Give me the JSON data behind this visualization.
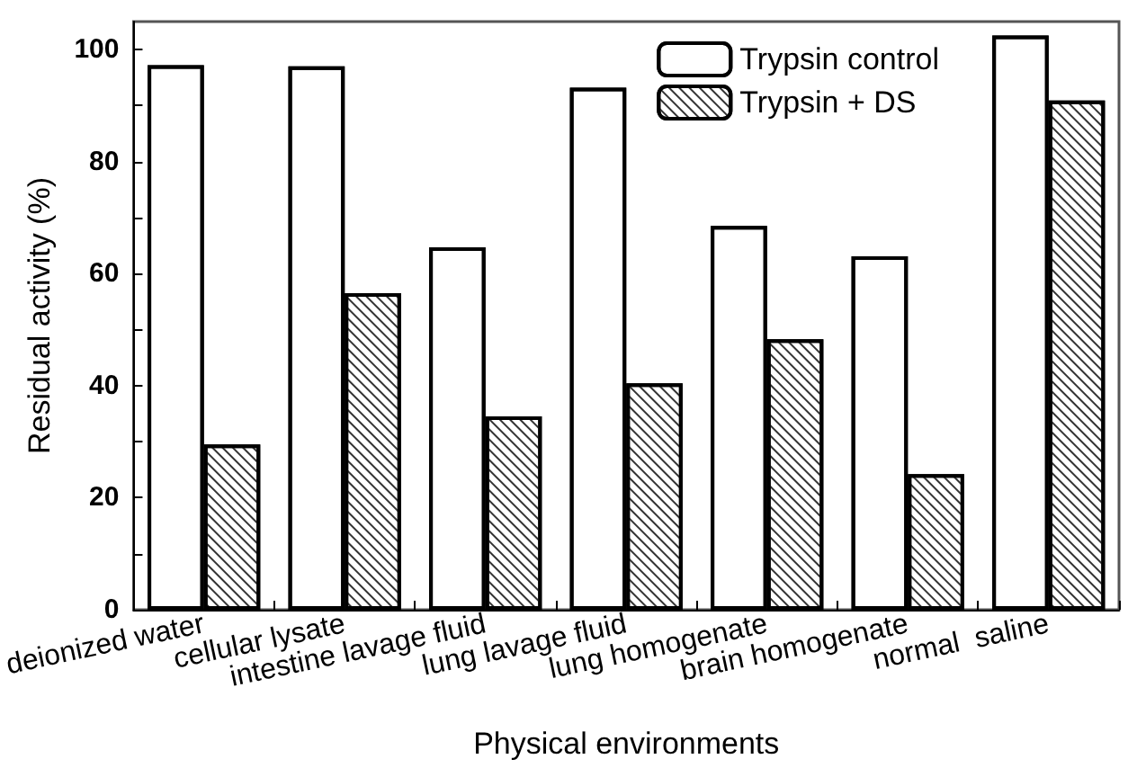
{
  "chart_data": {
    "type": "bar",
    "xlabel": "Physical environments",
    "ylabel": "Residual activity (%)",
    "categories": [
      "deionized water",
      "cellular lysate",
      "intestine lavage fluid",
      "lung lavage fluid",
      "lung homogenate",
      "brain homogenate",
      "normal  saline"
    ],
    "series": [
      {
        "name": "Trypsin control",
        "color": "#ffffff",
        "values": [
          97.2,
          97.0,
          64.7,
          93.2,
          68.5,
          63.1,
          102.5
        ]
      },
      {
        "name": "Trypsin + DS",
        "color": "#ffffff",
        "values": [
          29.5,
          56.5,
          34.5,
          40.4,
          48.3,
          24.2,
          90.9
        ]
      }
    ],
    "ylim": [
      0,
      105
    ],
    "yticks": [
      0,
      20,
      40,
      60,
      80,
      100
    ],
    "grid": false,
    "legend": "top right"
  }
}
